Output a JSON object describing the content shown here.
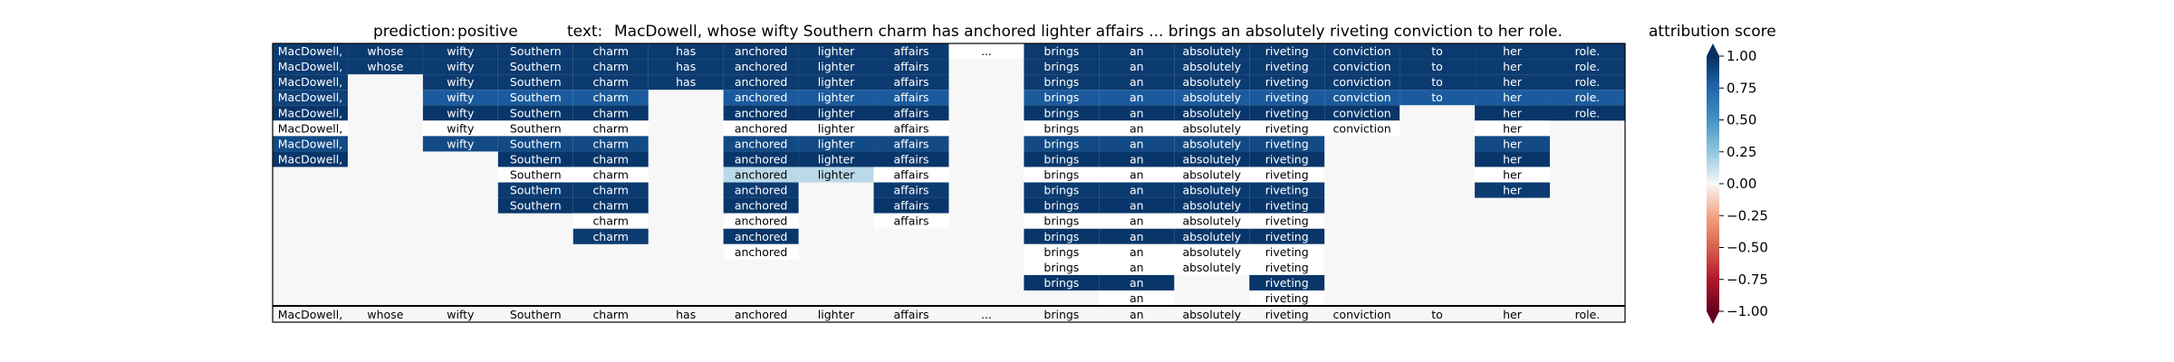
{
  "header": {
    "prediction_label": "prediction:",
    "prediction_value": "positive",
    "text_label": "text:",
    "text_value": "MacDowell, whose wifty Southern charm has anchored lighter affairs ... brings an absolutely riveting conviction to her role."
  },
  "colorbar": {
    "title": "attribution score",
    "ticks": [
      "1.00",
      "0.75",
      "0.50",
      "0.25",
      "0.00",
      "−0.25",
      "−0.50",
      "−0.75",
      "−1.00"
    ],
    "tick_values": [
      1.0,
      0.75,
      0.5,
      0.25,
      0.0,
      -0.25,
      -0.5,
      -0.75,
      -1.0
    ],
    "colors": {
      "positive": "#053061",
      "neutral": "#f7f7f7",
      "negative": "#67001f"
    }
  },
  "chart_data": {
    "type": "heatmap",
    "title": "",
    "vmin": -1.0,
    "vmax": 1.0,
    "tokens": [
      "MacDowell,",
      "whose",
      "wifty",
      "Southern",
      "charm",
      "has",
      "anchored",
      "lighter",
      "affairs",
      "...",
      "brings",
      "an",
      "absolutely",
      "riveting",
      "conviction",
      "to",
      "her",
      "role."
    ],
    "rows": [
      [
        0.95,
        0.95,
        0.95,
        0.95,
        0.95,
        0.95,
        0.95,
        0.95,
        0.95,
        0.0,
        0.95,
        0.95,
        0.95,
        0.95,
        0.95,
        0.95,
        0.95,
        0.95
      ],
      [
        0.95,
        0.95,
        0.95,
        0.95,
        0.95,
        0.95,
        0.95,
        0.95,
        0.95,
        null,
        0.95,
        0.95,
        0.95,
        0.95,
        0.95,
        0.95,
        0.95,
        0.95
      ],
      [
        0.95,
        null,
        0.95,
        0.95,
        0.95,
        0.95,
        0.95,
        0.95,
        0.95,
        null,
        0.95,
        0.95,
        0.95,
        0.95,
        0.95,
        0.95,
        0.95,
        0.95
      ],
      [
        0.92,
        null,
        0.8,
        0.8,
        0.8,
        null,
        0.8,
        0.8,
        0.8,
        null,
        0.8,
        0.8,
        0.8,
        0.8,
        0.8,
        0.8,
        0.8,
        0.8
      ],
      [
        0.97,
        null,
        0.97,
        0.97,
        0.97,
        null,
        0.97,
        0.97,
        0.97,
        null,
        0.97,
        0.97,
        0.97,
        0.97,
        0.97,
        null,
        0.97,
        0.97
      ],
      [
        0.0,
        null,
        0.0,
        0.0,
        0.0,
        null,
        0.0,
        0.0,
        0.0,
        null,
        0.0,
        0.0,
        0.0,
        0.0,
        0.0,
        null,
        0.0,
        null
      ],
      [
        0.88,
        null,
        0.88,
        0.88,
        0.88,
        null,
        0.88,
        0.88,
        0.88,
        null,
        0.88,
        0.88,
        0.88,
        0.88,
        null,
        null,
        0.88,
        null
      ],
      [
        0.97,
        null,
        null,
        0.97,
        0.97,
        null,
        0.97,
        0.97,
        0.97,
        null,
        0.97,
        0.97,
        0.97,
        0.97,
        null,
        null,
        0.97,
        null
      ],
      [
        null,
        null,
        null,
        0.0,
        0.0,
        null,
        0.15,
        0.15,
        0.0,
        null,
        0.0,
        0.0,
        0.0,
        0.0,
        null,
        null,
        0.0,
        null
      ],
      [
        null,
        null,
        null,
        0.95,
        0.95,
        null,
        0.95,
        null,
        0.95,
        null,
        0.95,
        0.95,
        0.95,
        0.95,
        null,
        null,
        0.95,
        null
      ],
      [
        null,
        null,
        null,
        0.97,
        0.97,
        null,
        0.97,
        null,
        0.97,
        null,
        0.97,
        0.97,
        0.97,
        0.97,
        null,
        null,
        null,
        null
      ],
      [
        null,
        null,
        null,
        null,
        0.0,
        null,
        0.0,
        null,
        0.0,
        null,
        0.0,
        0.0,
        0.0,
        0.0,
        null,
        null,
        null,
        null
      ],
      [
        null,
        null,
        null,
        null,
        0.95,
        null,
        0.97,
        null,
        null,
        null,
        0.97,
        0.97,
        0.97,
        0.97,
        null,
        null,
        null,
        null
      ],
      [
        null,
        null,
        null,
        null,
        null,
        null,
        0.0,
        null,
        null,
        null,
        0.0,
        0.0,
        0.0,
        0.0,
        null,
        null,
        null,
        null
      ],
      [
        null,
        null,
        null,
        null,
        null,
        null,
        null,
        null,
        null,
        null,
        0.0,
        0.0,
        0.0,
        0.0,
        null,
        null,
        null,
        null
      ],
      [
        null,
        null,
        null,
        null,
        null,
        null,
        null,
        null,
        null,
        null,
        0.97,
        0.97,
        null,
        0.97,
        null,
        null,
        null,
        null
      ],
      [
        null,
        null,
        null,
        null,
        null,
        null,
        null,
        null,
        null,
        null,
        null,
        0.0,
        null,
        0.0,
        null,
        null,
        null,
        null
      ]
    ],
    "baseline_row": [
      "MacDowell,",
      "whose",
      "wifty",
      "Southern",
      "charm",
      "has",
      "anchored",
      "lighter",
      "affairs",
      "...",
      "brings",
      "an",
      "absolutely",
      "riveting",
      "conviction",
      "to",
      "her",
      "role."
    ]
  }
}
